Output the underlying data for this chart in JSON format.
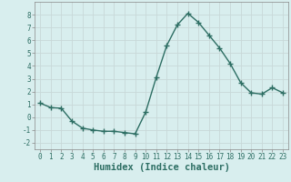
{
  "x": [
    0,
    1,
    2,
    3,
    4,
    5,
    6,
    7,
    8,
    9,
    10,
    11,
    12,
    13,
    14,
    15,
    16,
    17,
    18,
    19,
    20,
    21,
    22,
    23
  ],
  "y": [
    1.1,
    0.75,
    0.7,
    -0.3,
    -0.85,
    -1.0,
    -1.1,
    -1.1,
    -1.2,
    -1.3,
    0.4,
    3.1,
    5.6,
    7.2,
    8.1,
    7.4,
    6.4,
    5.4,
    4.2,
    2.7,
    1.9,
    1.8,
    2.3,
    1.9
  ],
  "line_color": "#2d6e63",
  "marker": "+",
  "marker_size": 4,
  "bg_color": "#d8eeee",
  "grid_color": "#c8d8d8",
  "xlabel": "Humidex (Indice chaleur)",
  "ylim": [
    -2.5,
    9.0
  ],
  "xlim": [
    -0.5,
    23.5
  ],
  "yticks": [
    -2,
    -1,
    0,
    1,
    2,
    3,
    4,
    5,
    6,
    7,
    8
  ],
  "xticks": [
    0,
    1,
    2,
    3,
    4,
    5,
    6,
    7,
    8,
    9,
    10,
    11,
    12,
    13,
    14,
    15,
    16,
    17,
    18,
    19,
    20,
    21,
    22,
    23
  ],
  "tick_label_size": 5.5,
  "xlabel_size": 7.5,
  "line_width": 1.0,
  "marker_edge_width": 1.0
}
